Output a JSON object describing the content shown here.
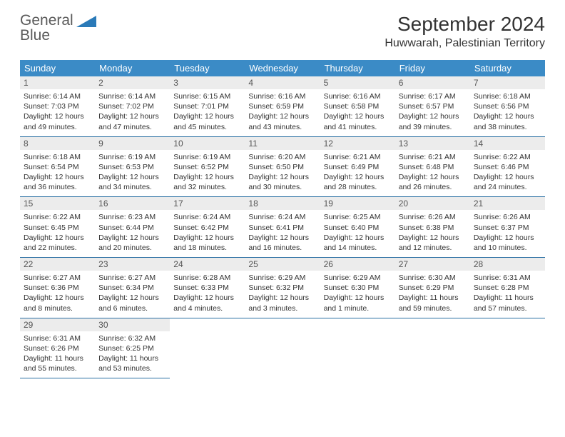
{
  "brand": {
    "name_top": "General",
    "name_bottom": "Blue"
  },
  "title": "September 2024",
  "location": "Huwwarah, Palestinian Territory",
  "header_bg": "#3b8bc6",
  "divider_color": "#2a6fa3",
  "daynum_bg": "#ececec",
  "weekdays": [
    "Sunday",
    "Monday",
    "Tuesday",
    "Wednesday",
    "Thursday",
    "Friday",
    "Saturday"
  ],
  "days": [
    {
      "n": "1",
      "sunrise": "6:14 AM",
      "sunset": "7:03 PM",
      "daylight": "12 hours and 49 minutes."
    },
    {
      "n": "2",
      "sunrise": "6:14 AM",
      "sunset": "7:02 PM",
      "daylight": "12 hours and 47 minutes."
    },
    {
      "n": "3",
      "sunrise": "6:15 AM",
      "sunset": "7:01 PM",
      "daylight": "12 hours and 45 minutes."
    },
    {
      "n": "4",
      "sunrise": "6:16 AM",
      "sunset": "6:59 PM",
      "daylight": "12 hours and 43 minutes."
    },
    {
      "n": "5",
      "sunrise": "6:16 AM",
      "sunset": "6:58 PM",
      "daylight": "12 hours and 41 minutes."
    },
    {
      "n": "6",
      "sunrise": "6:17 AM",
      "sunset": "6:57 PM",
      "daylight": "12 hours and 39 minutes."
    },
    {
      "n": "7",
      "sunrise": "6:18 AM",
      "sunset": "6:56 PM",
      "daylight": "12 hours and 38 minutes."
    },
    {
      "n": "8",
      "sunrise": "6:18 AM",
      "sunset": "6:54 PM",
      "daylight": "12 hours and 36 minutes."
    },
    {
      "n": "9",
      "sunrise": "6:19 AM",
      "sunset": "6:53 PM",
      "daylight": "12 hours and 34 minutes."
    },
    {
      "n": "10",
      "sunrise": "6:19 AM",
      "sunset": "6:52 PM",
      "daylight": "12 hours and 32 minutes."
    },
    {
      "n": "11",
      "sunrise": "6:20 AM",
      "sunset": "6:50 PM",
      "daylight": "12 hours and 30 minutes."
    },
    {
      "n": "12",
      "sunrise": "6:21 AM",
      "sunset": "6:49 PM",
      "daylight": "12 hours and 28 minutes."
    },
    {
      "n": "13",
      "sunrise": "6:21 AM",
      "sunset": "6:48 PM",
      "daylight": "12 hours and 26 minutes."
    },
    {
      "n": "14",
      "sunrise": "6:22 AM",
      "sunset": "6:46 PM",
      "daylight": "12 hours and 24 minutes."
    },
    {
      "n": "15",
      "sunrise": "6:22 AM",
      "sunset": "6:45 PM",
      "daylight": "12 hours and 22 minutes."
    },
    {
      "n": "16",
      "sunrise": "6:23 AM",
      "sunset": "6:44 PM",
      "daylight": "12 hours and 20 minutes."
    },
    {
      "n": "17",
      "sunrise": "6:24 AM",
      "sunset": "6:42 PM",
      "daylight": "12 hours and 18 minutes."
    },
    {
      "n": "18",
      "sunrise": "6:24 AM",
      "sunset": "6:41 PM",
      "daylight": "12 hours and 16 minutes."
    },
    {
      "n": "19",
      "sunrise": "6:25 AM",
      "sunset": "6:40 PM",
      "daylight": "12 hours and 14 minutes."
    },
    {
      "n": "20",
      "sunrise": "6:26 AM",
      "sunset": "6:38 PM",
      "daylight": "12 hours and 12 minutes."
    },
    {
      "n": "21",
      "sunrise": "6:26 AM",
      "sunset": "6:37 PM",
      "daylight": "12 hours and 10 minutes."
    },
    {
      "n": "22",
      "sunrise": "6:27 AM",
      "sunset": "6:36 PM",
      "daylight": "12 hours and 8 minutes."
    },
    {
      "n": "23",
      "sunrise": "6:27 AM",
      "sunset": "6:34 PM",
      "daylight": "12 hours and 6 minutes."
    },
    {
      "n": "24",
      "sunrise": "6:28 AM",
      "sunset": "6:33 PM",
      "daylight": "12 hours and 4 minutes."
    },
    {
      "n": "25",
      "sunrise": "6:29 AM",
      "sunset": "6:32 PM",
      "daylight": "12 hours and 3 minutes."
    },
    {
      "n": "26",
      "sunrise": "6:29 AM",
      "sunset": "6:30 PM",
      "daylight": "12 hours and 1 minute."
    },
    {
      "n": "27",
      "sunrise": "6:30 AM",
      "sunset": "6:29 PM",
      "daylight": "11 hours and 59 minutes."
    },
    {
      "n": "28",
      "sunrise": "6:31 AM",
      "sunset": "6:28 PM",
      "daylight": "11 hours and 57 minutes."
    },
    {
      "n": "29",
      "sunrise": "6:31 AM",
      "sunset": "6:26 PM",
      "daylight": "11 hours and 55 minutes."
    },
    {
      "n": "30",
      "sunrise": "6:32 AM",
      "sunset": "6:25 PM",
      "daylight": "11 hours and 53 minutes."
    }
  ],
  "labels": {
    "sunrise": "Sunrise:",
    "sunset": "Sunset:",
    "daylight": "Daylight:"
  },
  "start_weekday": 0,
  "fonts": {
    "title_pt": 28,
    "location_pt": 16,
    "header_pt": 13,
    "daynum_pt": 12,
    "cell_pt": 10.5
  }
}
